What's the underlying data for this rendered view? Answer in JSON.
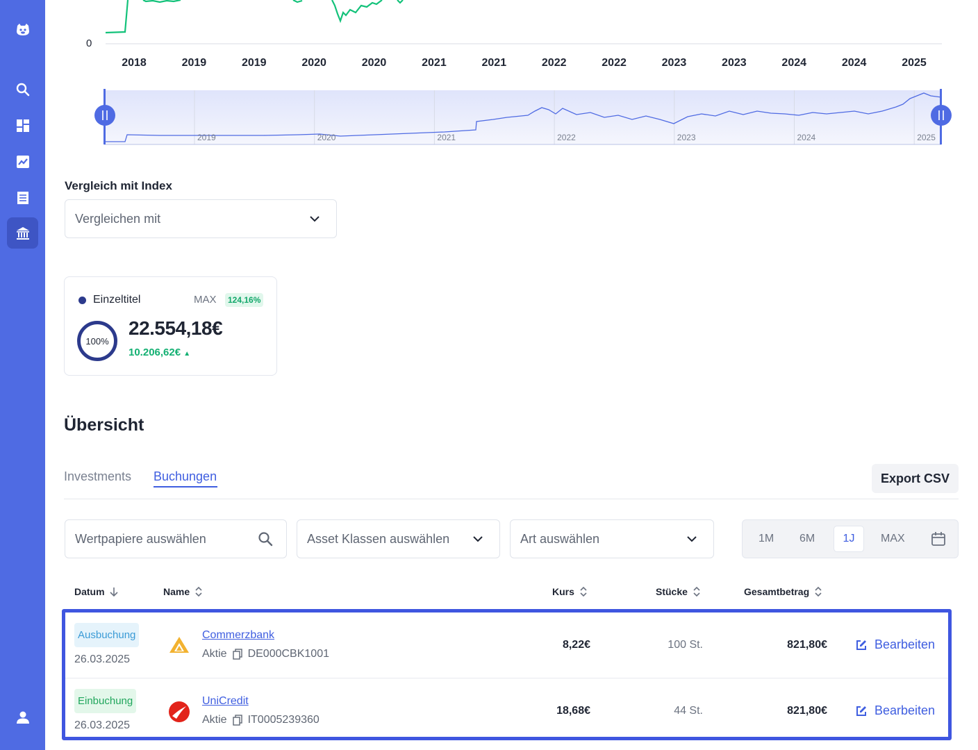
{
  "sidebar": {
    "items": [
      {
        "icon": "logo-icon"
      },
      {
        "icon": "search-icon"
      },
      {
        "icon": "dashboard-icon"
      },
      {
        "icon": "chart-icon"
      },
      {
        "icon": "list-icon"
      },
      {
        "icon": "bank-icon",
        "active": true
      },
      {
        "icon": "user-icon"
      }
    ]
  },
  "chart": {
    "y_zero_label": "0",
    "x_labels": [
      "2018",
      "2019",
      "2019",
      "2020",
      "2020",
      "2021",
      "2021",
      "2022",
      "2022",
      "2023",
      "2023",
      "2024",
      "2024",
      "2025"
    ],
    "navigator_labels": [
      "2019",
      "2020",
      "2021",
      "2022",
      "2023",
      "2024",
      "2025"
    ],
    "line_color": "#13c27a",
    "navigator_color": "#4f6be3"
  },
  "compare": {
    "label": "Vergleich mit Index",
    "placeholder": "Vergleichen mit"
  },
  "summary_card": {
    "label": "Einzeltitel",
    "period": "MAX",
    "performance": "124,16%",
    "share": "100%",
    "value": "22.554,18€",
    "gain": "10.206,62€",
    "gain_arrow": "▲"
  },
  "overview": {
    "title": "Übersicht",
    "tabs": [
      {
        "label": "Investments",
        "active": false
      },
      {
        "label": "Buchungen",
        "active": true
      }
    ],
    "export_label": "Export CSV"
  },
  "filters": {
    "securities_placeholder": "Wertpapiere auswählen",
    "asset_classes_placeholder": "Asset Klassen auswählen",
    "type_placeholder": "Art auswählen",
    "ranges": [
      "1M",
      "6M",
      "1J",
      "MAX"
    ],
    "active_range": "1J"
  },
  "table": {
    "headers": {
      "date": "Datum",
      "name": "Name",
      "price": "Kurs",
      "shares": "Stücke",
      "total": "Gesamtbetrag"
    },
    "rows": [
      {
        "type": "Ausbuchung",
        "date": "26.03.2025",
        "name": "Commerzbank",
        "asset": "Aktie",
        "isin": "DE000CBK1001",
        "price": "8,22€",
        "shares": "100 St.",
        "total": "821,80€",
        "action": "Bearbeiten"
      },
      {
        "type": "Einbuchung",
        "date": "26.03.2025",
        "name": "UniCredit",
        "asset": "Aktie",
        "isin": "IT0005239360",
        "price": "18,68€",
        "shares": "44 St.",
        "total": "821,80€",
        "action": "Bearbeiten"
      }
    ]
  }
}
